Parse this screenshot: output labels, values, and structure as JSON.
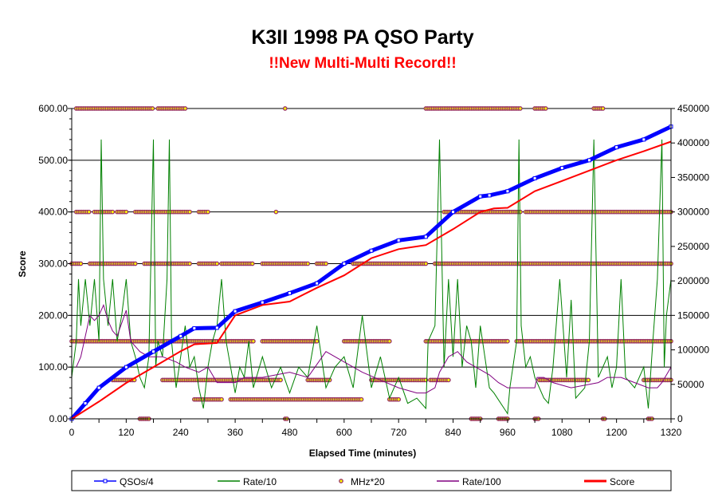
{
  "chart_data": {
    "type": "line",
    "title": "K3II 1998 PA QSO Party",
    "subtitle": "!!New Multi-Multi Record!!",
    "xlabel": "Elapsed Time (minutes)",
    "ylabel": "Score",
    "xlim": [
      0,
      1320
    ],
    "ylim": [
      0,
      600
    ],
    "y2lim": [
      0,
      450000
    ],
    "xticks": [
      "0",
      "120",
      "240",
      "360",
      "480",
      "600",
      "720",
      "840",
      "960",
      "1080",
      "1200",
      "1320"
    ],
    "yticks": [
      "0.00",
      "100.00",
      "200.00",
      "300.00",
      "400.00",
      "500.00",
      "600.00"
    ],
    "y2ticks": [
      "0",
      "50000",
      "100000",
      "150000",
      "200000",
      "250000",
      "300000",
      "350000",
      "400000",
      "450000"
    ],
    "grid": "horizontal",
    "legend_position": "bottom",
    "colors": {
      "qsos": "#0000ff",
      "rate10": "#008000",
      "mhz_fill": "#ffff00",
      "mhz_stroke": "#993366",
      "rate100": "#800080",
      "score": "#ff0000"
    },
    "series": [
      {
        "name": "QSOs/4",
        "axis": "left",
        "x": [
          0,
          30,
          60,
          120,
          180,
          240,
          270,
          320,
          360,
          420,
          480,
          540,
          600,
          660,
          720,
          780,
          840,
          900,
          920,
          960,
          1020,
          1080,
          1140,
          1200,
          1260,
          1320
        ],
        "y": [
          0,
          30,
          60,
          100,
          130,
          160,
          175,
          176,
          208,
          225,
          243,
          262,
          300,
          325,
          345,
          352,
          400,
          430,
          432,
          440,
          465,
          485,
          500,
          525,
          540,
          565
        ]
      },
      {
        "name": "Rate/10",
        "axis": "left",
        "x": [
          0,
          10,
          15,
          20,
          30,
          40,
          50,
          60,
          65,
          70,
          80,
          90,
          100,
          110,
          120,
          130,
          140,
          150,
          160,
          170,
          180,
          185,
          190,
          200,
          210,
          215,
          220,
          230,
          240,
          250,
          260,
          270,
          280,
          290,
          300,
          310,
          320,
          330,
          340,
          350,
          360,
          370,
          380,
          390,
          400,
          420,
          440,
          460,
          480,
          500,
          520,
          540,
          560,
          580,
          600,
          620,
          640,
          660,
          680,
          700,
          720,
          740,
          760,
          780,
          785,
          800,
          810,
          820,
          830,
          840,
          850,
          860,
          870,
          880,
          890,
          900,
          910,
          920,
          930,
          960,
          965,
          980,
          985,
          990,
          1000,
          1010,
          1020,
          1040,
          1050,
          1060,
          1075,
          1090,
          1100,
          1110,
          1130,
          1140,
          1150,
          1160,
          1180,
          1190,
          1200,
          1210,
          1220,
          1240,
          1260,
          1270,
          1280,
          1290,
          1300,
          1305,
          1310,
          1320
        ],
        "y": [
          80,
          150,
          270,
          180,
          270,
          180,
          270,
          150,
          540,
          270,
          180,
          270,
          150,
          200,
          270,
          150,
          120,
          80,
          60,
          120,
          540,
          100,
          150,
          120,
          270,
          540,
          150,
          60,
          120,
          180,
          100,
          120,
          60,
          20,
          100,
          150,
          180,
          270,
          150,
          100,
          50,
          100,
          80,
          150,
          60,
          120,
          60,
          100,
          50,
          100,
          80,
          180,
          60,
          100,
          120,
          60,
          200,
          60,
          120,
          40,
          80,
          30,
          40,
          20,
          150,
          180,
          540,
          100,
          270,
          120,
          270,
          100,
          180,
          150,
          60,
          180,
          120,
          60,
          50,
          10,
          60,
          150,
          540,
          180,
          100,
          120,
          80,
          40,
          30,
          100,
          270,
          80,
          230,
          40,
          60,
          150,
          540,
          80,
          120,
          60,
          100,
          270,
          80,
          60,
          100,
          20,
          150,
          270,
          540,
          100,
          200,
          270
        ]
      },
      {
        "name": "MHz*20",
        "axis": "left",
        "type": "scatter",
        "bands": [
          {
            "level": 600,
            "ranges": [
              [
                10,
                180
              ],
              [
                190,
                250
              ],
              [
                470,
                472
              ],
              [
                780,
                990
              ],
              [
                1020,
                1045
              ],
              [
                1150,
                1170
              ]
            ]
          },
          {
            "level": 400,
            "ranges": [
              [
                10,
                40
              ],
              [
                50,
                90
              ],
              [
                100,
                120
              ],
              [
                140,
                260
              ],
              [
                280,
                300
              ],
              [
                450,
                452
              ],
              [
                820,
                990
              ],
              [
                1000,
                1320
              ]
            ]
          },
          {
            "level": 300,
            "ranges": [
              [
                0,
                20
              ],
              [
                40,
                140
              ],
              [
                160,
                260
              ],
              [
                280,
                320
              ],
              [
                330,
                400
              ],
              [
                420,
                520
              ],
              [
                540,
                560
              ],
              [
                620,
                780
              ],
              [
                800,
                1320
              ]
            ]
          },
          {
            "level": 150,
            "ranges": [
              [
                0,
                400
              ],
              [
                420,
                540
              ],
              [
                600,
                700
              ],
              [
                780,
                960
              ],
              [
                980,
                1320
              ]
            ]
          },
          {
            "level": 75,
            "ranges": [
              [
                90,
                140
              ],
              [
                200,
                460
              ],
              [
                520,
                570
              ],
              [
                660,
                780
              ],
              [
                790,
                830
              ],
              [
                1030,
                1140
              ],
              [
                1260,
                1320
              ]
            ]
          },
          {
            "level": 37.5,
            "ranges": [
              [
                270,
                330
              ],
              [
                350,
                640
              ],
              [
                700,
                720
              ]
            ]
          },
          {
            "level": 0,
            "ranges": [
              [
                150,
                170
              ],
              [
                470,
                475
              ],
              [
                880,
                900
              ],
              [
                940,
                960
              ],
              [
                1020,
                1030
              ],
              [
                1170,
                1175
              ],
              [
                1270,
                1280
              ]
            ]
          }
        ]
      },
      {
        "name": "Rate/100",
        "axis": "left",
        "x": [
          10,
          20,
          40,
          50,
          60,
          70,
          80,
          90,
          100,
          120,
          130,
          150,
          170,
          200,
          230,
          250,
          280,
          300,
          310,
          320,
          360,
          380,
          420,
          480,
          520,
          560,
          600,
          640,
          680,
          720,
          760,
          780,
          800,
          810,
          830,
          850,
          870,
          900,
          920,
          940,
          960,
          1000,
          1020,
          1025,
          1040,
          1060,
          1100,
          1130,
          1160,
          1180,
          1210,
          1240,
          1270,
          1290,
          1300,
          1320
        ],
        "y": [
          100,
          120,
          200,
          190,
          200,
          220,
          190,
          170,
          160,
          210,
          150,
          130,
          120,
          120,
          110,
          100,
          90,
          100,
          85,
          70,
          70,
          80,
          80,
          90,
          80,
          130,
          110,
          90,
          75,
          60,
          50,
          50,
          60,
          90,
          120,
          130,
          110,
          95,
          85,
          70,
          60,
          60,
          60,
          80,
          80,
          70,
          60,
          65,
          70,
          80,
          80,
          70,
          60,
          60,
          70,
          100
        ]
      },
      {
        "name": "Score",
        "axis": "right",
        "x": [
          0,
          60,
          120,
          180,
          240,
          270,
          320,
          360,
          420,
          480,
          540,
          600,
          660,
          720,
          780,
          840,
          900,
          930,
          960,
          1020,
          1080,
          1140,
          1200,
          1260,
          1320
        ],
        "y": [
          0,
          25000,
          52000,
          75000,
          98000,
          108000,
          110000,
          150000,
          165000,
          170000,
          190000,
          208000,
          233000,
          246000,
          252000,
          275000,
          300000,
          305000,
          306000,
          330000,
          345000,
          360000,
          375000,
          388000,
          402000
        ]
      }
    ]
  }
}
